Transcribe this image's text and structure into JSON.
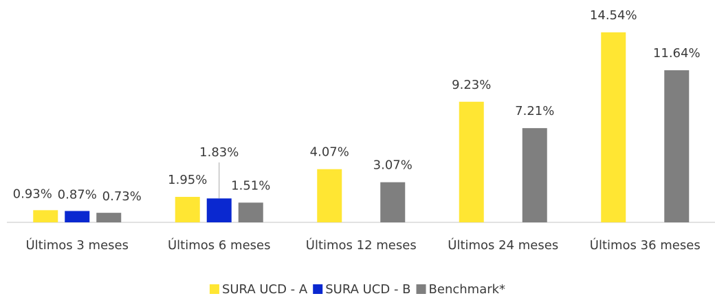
{
  "chart_data": {
    "type": "bar",
    "categories": [
      "Últimos 3 meses",
      "Últimos 6 meses",
      "Últimos 12 meses",
      "Últimos 24 meses",
      "Últimos 36 meses"
    ],
    "series": [
      {
        "name": "SURA UCD - A",
        "color": "#ffe633",
        "values": [
          0.93,
          1.95,
          4.07,
          9.23,
          14.54
        ],
        "value_labels": [
          "0.93%",
          "1.95%",
          "4.07%",
          "9.23%",
          "14.54%"
        ]
      },
      {
        "name": "SURA UCD - B",
        "color": "#0a28d0",
        "values": [
          0.87,
          1.83,
          null,
          null,
          null
        ],
        "value_labels": [
          "0.87%",
          "1.83%",
          null,
          null,
          null
        ]
      },
      {
        "name": "Benchmark*",
        "color": "#7f7f7f",
        "values": [
          0.73,
          1.51,
          3.07,
          7.21,
          11.64
        ],
        "value_labels": [
          "0.73%",
          "1.51%",
          "3.07%",
          "7.21%",
          "11.64%"
        ]
      }
    ],
    "legend": "bottom"
  }
}
